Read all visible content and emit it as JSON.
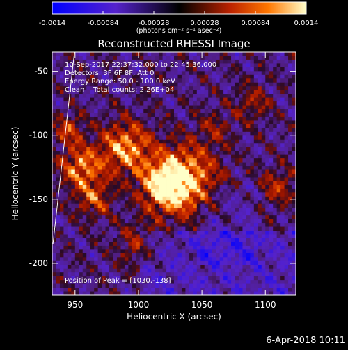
{
  "colorbar": {
    "ticks": [
      "-0.0014",
      "-0.00084",
      "-0.00028",
      "0.00028",
      "0.00084",
      "0.0014"
    ],
    "unit_label": "(photons cm⁻² s⁻¹ asec⁻²)",
    "range": [
      -0.0014,
      0.0014
    ],
    "colormap": [
      "#0000ff",
      "#5522cc",
      "#000000",
      "#bb2200",
      "#ff7700",
      "#ffffcc"
    ]
  },
  "chart_data": {
    "type": "heatmap",
    "title": "Reconstructed RHESSI Image",
    "xlabel": "Heliocentric X (arcsec)",
    "ylabel": "Heliocentric Y (arcsec)",
    "xlim": [
      932,
      1124
    ],
    "ylim": [
      -225,
      -35
    ],
    "xticks": [
      "950",
      "1000",
      "1050",
      "1100"
    ],
    "yticks": [
      "-50",
      "-100",
      "-150",
      "-200"
    ],
    "info_lines": [
      "10-Sep-2017 22:37:32.000 to 22:45:36.000",
      "Detectors: 3F 6F 8F, Att 0",
      "Energy Range: 50.0 - 100.0 keV",
      "Clean    Total counts: 2.26E+04"
    ],
    "peak_text": "Position of Peak = [1030,-138]",
    "peak_position": [
      1030,
      -138
    ],
    "total_counts": 22600,
    "energy_range_kev": [
      50.0,
      100.0
    ]
  },
  "footer": {
    "date": "6-Apr-2018 10:11"
  }
}
